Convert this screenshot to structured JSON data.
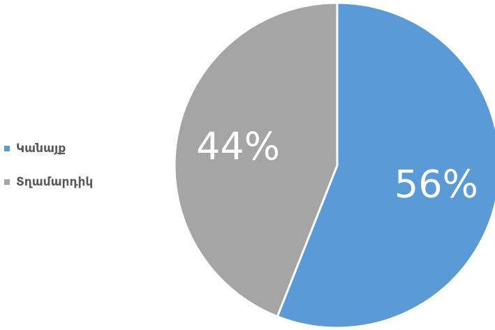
{
  "chart_data": {
    "type": "pie",
    "categories": [
      "Կանայք",
      "Տղամարդիկ"
    ],
    "values": [
      56,
      44
    ],
    "data_labels": [
      "56%",
      "44%"
    ],
    "colors": [
      "#5b9bd5",
      "#a5a5a5"
    ],
    "legend_placement": "left",
    "start_angle": "12-o'clock",
    "direction": "clockwise"
  }
}
